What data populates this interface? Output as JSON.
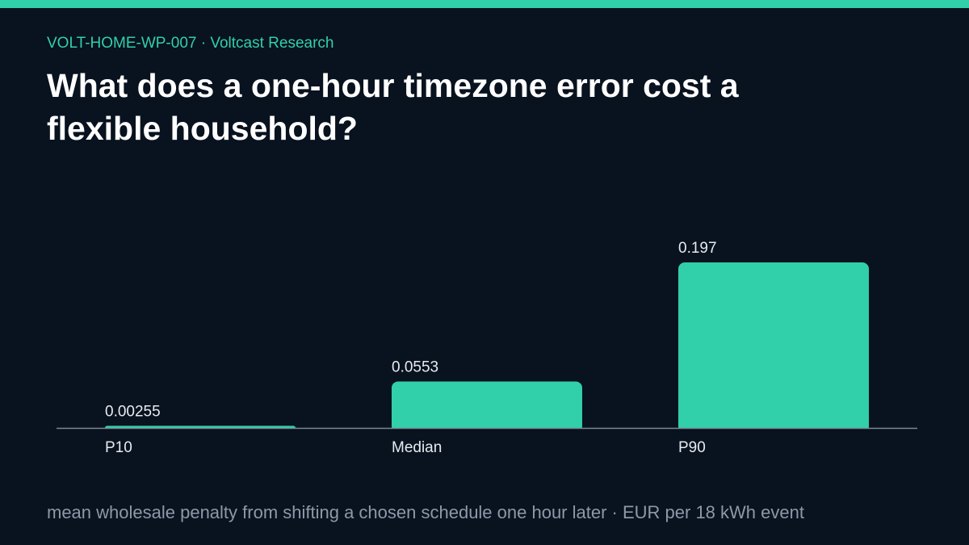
{
  "header": {
    "eyebrow": "VOLT-HOME-WP-007 · Voltcast Research"
  },
  "footer": {
    "note": "mean wholesale penalty from shifting a chosen schedule one hour later · EUR per 18 kWh event"
  },
  "colors": {
    "accent": "#31d0aa",
    "background": "#09121f",
    "title": "#ffffff",
    "axis": "#7b8796",
    "label": "#e6ebef",
    "muted": "#8d99a8"
  },
  "chart_data": {
    "type": "bar",
    "title": "What does a one-hour timezone error cost a flexible household?",
    "categories": [
      "P10",
      "Median",
      "P90"
    ],
    "values": [
      0.00255,
      0.0553,
      0.197
    ],
    "value_labels": [
      "0.00255",
      "0.0553",
      "0.197"
    ],
    "ylim": [
      0,
      0.197
    ],
    "grid": false,
    "legend": "none"
  }
}
